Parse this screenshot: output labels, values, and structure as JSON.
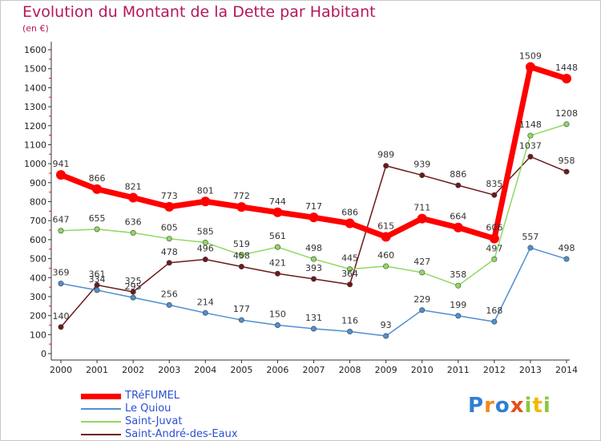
{
  "chart_data": {
    "type": "line",
    "title": "Evolution du Montant de la Dette par Habitant",
    "subtitle": "(en €)",
    "categories": [
      "2000",
      "2001",
      "2002",
      "2003",
      "2004",
      "2005",
      "2006",
      "2007",
      "2008",
      "2009",
      "2010",
      "2011",
      "2012",
      "2013",
      "2014"
    ],
    "ylim": [
      0,
      1600
    ],
    "yticks": [
      0,
      100,
      200,
      300,
      400,
      500,
      600,
      700,
      800,
      900,
      1000,
      1100,
      1200,
      1300,
      1400,
      1500,
      1600
    ],
    "grid": false,
    "legend_position": "bottom-left",
    "series": [
      {
        "name": "TRéFUMEL",
        "color": "#ff0000",
        "values": [
          941,
          866,
          821,
          773,
          801,
          772,
          744,
          717,
          686,
          615,
          711,
          664,
          606,
          1509,
          1448
        ]
      },
      {
        "name": "Le Quiou",
        "color": "#4f8fd0",
        "values": [
          369,
          334,
          295,
          256,
          214,
          177,
          150,
          131,
          116,
          93,
          229,
          199,
          168,
          557,
          498
        ]
      },
      {
        "name": "Saint-Juvat",
        "color": "#90d860",
        "values": [
          647,
          655,
          636,
          605,
          585,
          519,
          561,
          498,
          445,
          460,
          427,
          358,
          497,
          1148,
          1208
        ]
      },
      {
        "name": "Saint-André-des-Eaux",
        "color": "#6b1a1a",
        "values": [
          140,
          361,
          325,
          478,
          496,
          458,
          421,
          393,
          364,
          989,
          939,
          886,
          835,
          1037,
          958
        ]
      }
    ]
  },
  "logo": {
    "letters": [
      "P",
      "r",
      "o",
      "x",
      "i",
      "t",
      "i"
    ],
    "colors": [
      "#2f7fd4",
      "#f08a1c",
      "#2f7fd4",
      "#e84d1c",
      "#8cc63f",
      "#f5b800",
      "#8cc63f"
    ]
  }
}
